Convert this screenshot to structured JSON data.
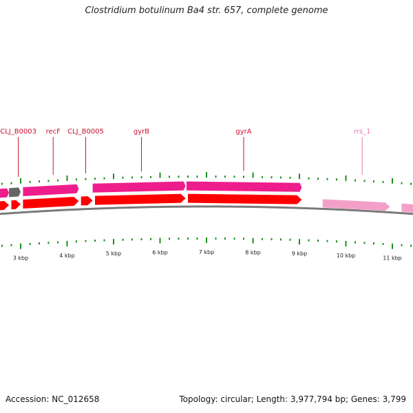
{
  "title": "Clostridium botulinum Ba4 str. 657, complete genome",
  "footer": {
    "accession": "Accession: NC_012658",
    "summary": "Topology: circular; Length: 3,977,794 bp; Genes: 3,799"
  },
  "colors": {
    "cds": "#ff0000",
    "gene": "#ee1d8c",
    "gene_pseudo": "#666666",
    "rrna": "#f3a0c8",
    "rrna_label": "#e87ab0",
    "gene_label": "#c8102e",
    "tick": "#1a8f1a",
    "backbone": "#7a7a7a"
  },
  "scale": {
    "unit": "kbp",
    "labels": [
      {
        "kbp": 3,
        "text": "3 kbp"
      },
      {
        "kbp": 4,
        "text": "4 kbp"
      },
      {
        "kbp": 5,
        "text": "5 kbp"
      },
      {
        "kbp": 6,
        "text": "6 kbp"
      },
      {
        "kbp": 7,
        "text": "7 kbp"
      },
      {
        "kbp": 8,
        "text": "8 kbp"
      },
      {
        "kbp": 9,
        "text": "9 kbp"
      },
      {
        "kbp": 10,
        "text": "10 kbp"
      },
      {
        "kbp": 11,
        "text": "11 kbp"
      }
    ]
  },
  "gene_labels": [
    {
      "text": "CLJ_B0003",
      "kbp": 2.95,
      "kind": "gene"
    },
    {
      "text": "recF",
      "kbp": 3.7,
      "kind": "gene"
    },
    {
      "text": "CLJ_B0005",
      "kbp": 4.4,
      "kind": "gene"
    },
    {
      "text": "gyrB",
      "kbp": 5.6,
      "kind": "gene"
    },
    {
      "text": "gyrA",
      "kbp": 7.8,
      "kind": "gene"
    },
    {
      "text": "rrs_1",
      "kbp": 10.35,
      "kind": "rrna"
    }
  ],
  "features": {
    "genes": [
      {
        "start": 2.2,
        "end": 2.75,
        "kind": "gene"
      },
      {
        "start": 2.75,
        "end": 3.0,
        "kind": "gene_pseudo"
      },
      {
        "start": 3.05,
        "end": 4.25,
        "kind": "gene"
      },
      {
        "start": 4.55,
        "end": 6.55,
        "kind": "gene"
      },
      {
        "start": 6.57,
        "end": 9.05,
        "kind": "gene"
      }
    ],
    "cds": [
      {
        "start": 2.2,
        "end": 2.75
      },
      {
        "start": 2.8,
        "end": 3.0
      },
      {
        "start": 3.05,
        "end": 4.25
      },
      {
        "start": 4.3,
        "end": 4.55
      },
      {
        "start": 4.6,
        "end": 6.55
      },
      {
        "start": 6.6,
        "end": 9.05
      }
    ],
    "rrna": [
      {
        "start": 9.5,
        "end": 10.95
      },
      {
        "start": 11.2,
        "end": 12.5
      }
    ]
  }
}
